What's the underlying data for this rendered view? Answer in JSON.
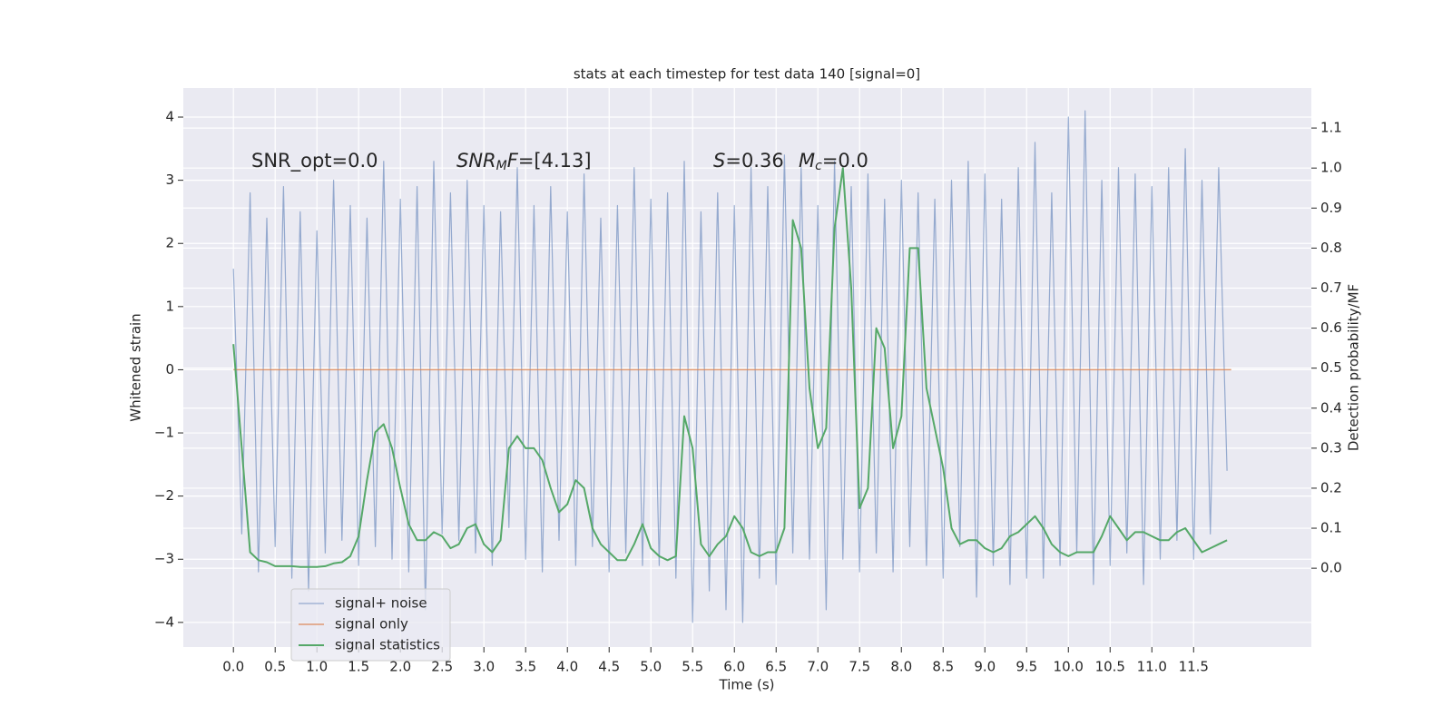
{
  "chart_data": {
    "type": "line",
    "title": "stats at each timestep for test data 140 [signal=0]",
    "xlabel": "Time (s)",
    "ylabel": "Whitened strain",
    "y2label": "Detection probability/MF",
    "xlim": [
      -0.6,
      12.91
    ],
    "ylim": [
      -4.39,
      4.46
    ],
    "y2lim": [
      -0.197,
      1.2
    ],
    "xticks": [
      {
        "value": 0,
        "label": "0.0"
      },
      0.5,
      {
        "value": 1,
        "label": "1.0"
      },
      1.5,
      {
        "value": 2,
        "label": "2.0"
      },
      2.5,
      {
        "value": 3,
        "label": "3.0"
      },
      3.5,
      {
        "value": 4,
        "label": "4.0"
      },
      4.5,
      {
        "value": 5,
        "label": "5.0"
      },
      5.5,
      {
        "value": 6,
        "label": "6.0"
      },
      6.5,
      {
        "value": 7,
        "label": "7.0"
      },
      7.5,
      {
        "value": 8,
        "label": "8.0"
      },
      8.5,
      {
        "value": 9,
        "label": "9.0"
      },
      9.5,
      {
        "value": 10,
        "label": "10.0"
      },
      10.5,
      {
        "value": 11,
        "label": "11.0"
      },
      11.5
    ],
    "yticks": [
      {
        "value": -4,
        "label": "−4"
      },
      {
        "value": -3,
        "label": "−3"
      },
      {
        "value": -2,
        "label": "−2"
      },
      {
        "value": -1,
        "label": "−1"
      },
      0,
      1,
      2,
      3,
      4
    ],
    "y2ticks": [
      {
        "value": 0,
        "label": "0.0"
      },
      0.1,
      0.2,
      0.3,
      0.4,
      0.5,
      0.6,
      0.7,
      0.8,
      0.9,
      {
        "value": 1,
        "label": "1.0"
      },
      1.1
    ],
    "grid": true,
    "legend": "lower left",
    "background": "#eaeaf2",
    "annotations": [
      "SNR_opt=0.0",
      {
        "base": "SNR",
        "sub": "M",
        "after": "F=[4.13]"
      },
      {
        "base": "S",
        "after": "=0.36"
      },
      {
        "base": "M",
        "sub": "c",
        "after": "=0.0"
      }
    ],
    "x": [
      0.0,
      0.1,
      0.2,
      0.3,
      0.4,
      0.5,
      0.6,
      0.7,
      0.8,
      0.9,
      1.0,
      1.1,
      1.2,
      1.3,
      1.4,
      1.5,
      1.6,
      1.7,
      1.8,
      1.9,
      2.0,
      2.1,
      2.2,
      2.3,
      2.4,
      2.5,
      2.6,
      2.7,
      2.8,
      2.9,
      3.0,
      3.1,
      3.2,
      3.3,
      3.4,
      3.5,
      3.6,
      3.7,
      3.8,
      3.9,
      4.0,
      4.1,
      4.2,
      4.3,
      4.4,
      4.5,
      4.6,
      4.7,
      4.8,
      4.9,
      5.0,
      5.1,
      5.2,
      5.3,
      5.4,
      5.5,
      5.6,
      5.7,
      5.8,
      5.9,
      6.0,
      6.1,
      6.2,
      6.3,
      6.4,
      6.5,
      6.6,
      6.7,
      6.8,
      6.9,
      7.0,
      7.1,
      7.2,
      7.3,
      7.4,
      7.5,
      7.6,
      7.7,
      7.8,
      7.9,
      8.0,
      8.1,
      8.2,
      8.3,
      8.4,
      8.5,
      8.6,
      8.7,
      8.8,
      8.9,
      9.0,
      9.1,
      9.2,
      9.3,
      9.4,
      9.5,
      9.6,
      9.7,
      9.8,
      9.9,
      10.0,
      10.1,
      10.2,
      10.3,
      10.4,
      10.5,
      10.6,
      10.7,
      10.8,
      10.9,
      11.0,
      11.1,
      11.2,
      11.3,
      11.4,
      11.5,
      11.6,
      11.7,
      11.8,
      11.9
    ],
    "series": [
      {
        "name": "signal+ noise",
        "color": "#4c72b0",
        "values": [
          1.6,
          -2.6,
          2.8,
          -3.2,
          2.4,
          -2.8,
          2.9,
          -3.3,
          2.5,
          -3.5,
          2.2,
          -2.9,
          3.0,
          -2.7,
          2.6,
          -3.1,
          2.4,
          -2.8,
          3.3,
          -3.0,
          2.7,
          -3.2,
          2.9,
          -3.8,
          3.3,
          -2.6,
          2.8,
          -2.7,
          3.0,
          -2.9,
          2.6,
          -3.1,
          2.5,
          -2.5,
          3.2,
          -3.0,
          2.6,
          -3.2,
          2.9,
          -2.7,
          2.5,
          -3.1,
          3.1,
          -2.8,
          2.4,
          -3.2,
          2.6,
          -2.9,
          3.2,
          -3.1,
          2.7,
          -3.1,
          2.8,
          -3.3,
          3.3,
          -4.0,
          2.5,
          -3.5,
          2.8,
          -3.8,
          2.6,
          -4.0,
          3.2,
          -3.3,
          2.9,
          -3.4,
          3.4,
          -2.9,
          3.2,
          -3.0,
          2.6,
          -3.8,
          3.3,
          -3.0,
          2.9,
          -3.2,
          3.1,
          -2.9,
          2.7,
          -3.2,
          3.0,
          -2.8,
          2.8,
          -3.1,
          2.7,
          -3.3,
          3.0,
          -2.8,
          3.3,
          -3.6,
          3.1,
          -3.1,
          2.7,
          -3.4,
          3.2,
          -3.3,
          3.6,
          -3.3,
          2.8,
          -3.1,
          4.0,
          -2.9,
          4.1,
          -3.4,
          3.0,
          -3.1,
          3.2,
          -2.9,
          3.1,
          -3.4,
          2.9,
          -3.0,
          3.2,
          -2.7,
          3.5,
          -3.0,
          3.0,
          -2.6,
          3.2,
          -1.6
        ]
      },
      {
        "name": "signal only",
        "color": "#dd8452",
        "x": [
          0.0,
          11.95
        ],
        "values": [
          0,
          0
        ]
      },
      {
        "name": "signal statistics",
        "color": "#55a868",
        "axis": "y2",
        "values": [
          0.56,
          0.3,
          0.04,
          0.02,
          0.015,
          0.005,
          0.005,
          0.005,
          0.003,
          0.003,
          0.003,
          0.005,
          0.012,
          0.015,
          0.03,
          0.08,
          0.22,
          0.34,
          0.36,
          0.3,
          0.2,
          0.11,
          0.07,
          0.07,
          0.09,
          0.08,
          0.05,
          0.06,
          0.1,
          0.11,
          0.06,
          0.04,
          0.07,
          0.3,
          0.33,
          0.3,
          0.3,
          0.27,
          0.2,
          0.14,
          0.16,
          0.22,
          0.2,
          0.1,
          0.06,
          0.04,
          0.02,
          0.02,
          0.06,
          0.11,
          0.05,
          0.03,
          0.02,
          0.03,
          0.38,
          0.3,
          0.06,
          0.03,
          0.06,
          0.08,
          0.13,
          0.1,
          0.04,
          0.03,
          0.04,
          0.04,
          0.1,
          0.87,
          0.8,
          0.45,
          0.3,
          0.35,
          0.85,
          1.0,
          0.7,
          0.15,
          0.2,
          0.6,
          0.55,
          0.3,
          0.38,
          0.8,
          0.8,
          0.45,
          0.35,
          0.25,
          0.1,
          0.06,
          0.07,
          0.07,
          0.05,
          0.04,
          0.05,
          0.08,
          0.09,
          0.11,
          0.13,
          0.1,
          0.06,
          0.04,
          0.03,
          0.04,
          0.04,
          0.04,
          0.08,
          0.13,
          0.1,
          0.07,
          0.09,
          0.09,
          0.08,
          0.07,
          0.07,
          0.09,
          0.1,
          0.07,
          0.04,
          0.05,
          0.06,
          0.07
        ]
      }
    ]
  }
}
